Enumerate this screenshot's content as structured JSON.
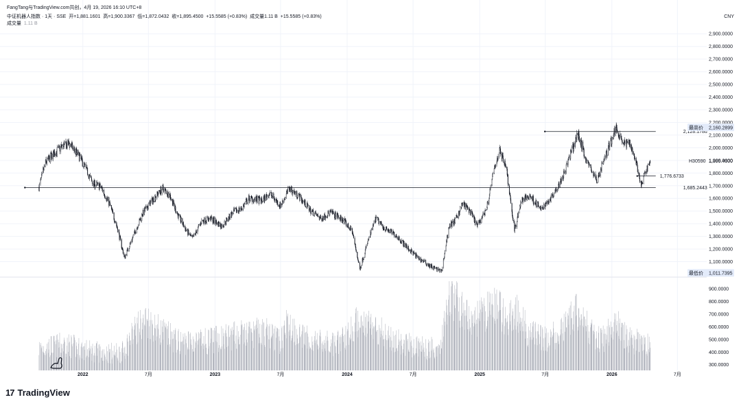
{
  "header": {
    "source": "FangTang与TradingView.com共创，4月 19, 2026 16:10 UTC+8",
    "symbol": "中证机器人指数 · 1天 · SSE",
    "open_label": "开",
    "open": "=1,881.1601",
    "high_label": "高",
    "high": "=1,900.3367",
    "low_label": "低",
    "low": "=1,872.0432",
    "close_label": "收",
    "close": "=1,895.4500",
    "change": "+15.5585 (+0.83%)",
    "volume_label": "成交量",
    "volume": "1.11 B",
    "volume_change": "+15.5585 (+0.83%)",
    "vol_legend_label": "成交量",
    "vol_legend_value": "1.11 B"
  },
  "currency": "CNY",
  "brand": {
    "logo": "17",
    "name": "TradingView"
  },
  "chart_data": {
    "type": "candlestick",
    "price_axis": {
      "range": [
        1000,
        2950
      ],
      "ticks": [
        "2,900.0000",
        "2,800.0000",
        "2,700.0000",
        "2,600.0000",
        "2,500.0000",
        "2,400.0000",
        "2,300.0000",
        "2,200.0000",
        "2,100.0000",
        "2,000.0000",
        "1,900.0000",
        "1,800.0000",
        "1,700.0000",
        "1,600.0000",
        "1,500.0000",
        "1,400.0000",
        "1,300.0000",
        "1,200.0000",
        "1,100.0000"
      ]
    },
    "volume_axis": {
      "range": [
        255,
        960
      ],
      "ticks": [
        "900.0000",
        "800.0000",
        "700.0000",
        "600.0000",
        "500.0000",
        "400.0000",
        "300.0000"
      ]
    },
    "x_axis": {
      "range": [
        "2021-08-01",
        "2026-07-25"
      ],
      "labels": [
        {
          "date": "2022-01-01",
          "text": "2022",
          "bold": true
        },
        {
          "date": "2022-07-01",
          "text": "7月",
          "bold": false
        },
        {
          "date": "2023-01-01",
          "text": "2023",
          "bold": true
        },
        {
          "date": "2023-07-01",
          "text": "7月",
          "bold": false
        },
        {
          "date": "2024-01-01",
          "text": "2024",
          "bold": true
        },
        {
          "date": "2024-07-01",
          "text": "7月",
          "bold": false
        },
        {
          "date": "2025-01-01",
          "text": "2025",
          "bold": true
        },
        {
          "date": "2025-07-01",
          "text": "7月",
          "bold": false
        },
        {
          "date": "2026-01-01",
          "text": "2026",
          "bold": true
        },
        {
          "date": "2026-07-01",
          "text": "7月",
          "bold": false
        }
      ]
    },
    "price_path": [
      [
        "2021-09-02",
        1690
      ],
      [
        "2021-09-20",
        1880
      ],
      [
        "2021-10-15",
        1960
      ],
      [
        "2021-11-05",
        2010
      ],
      [
        "2021-11-25",
        2030
      ],
      [
        "2021-12-20",
        1940
      ],
      [
        "2022-01-10",
        1830
      ],
      [
        "2022-01-28",
        1720
      ],
      [
        "2022-02-20",
        1690
      ],
      [
        "2022-03-15",
        1560
      ],
      [
        "2022-04-05",
        1380
      ],
      [
        "2022-04-26",
        1130
      ],
      [
        "2022-05-20",
        1300
      ],
      [
        "2022-06-15",
        1480
      ],
      [
        "2022-07-05",
        1560
      ],
      [
        "2022-07-25",
        1630
      ],
      [
        "2022-08-10",
        1680
      ],
      [
        "2022-08-30",
        1620
      ],
      [
        "2022-09-20",
        1470
      ],
      [
        "2022-10-15",
        1340
      ],
      [
        "2022-10-31",
        1280
      ],
      [
        "2022-11-25",
        1420
      ],
      [
        "2022-12-20",
        1440
      ],
      [
        "2023-01-20",
        1380
      ],
      [
        "2023-02-20",
        1490
      ],
      [
        "2023-03-15",
        1520
      ],
      [
        "2023-04-05",
        1600
      ],
      [
        "2023-05-10",
        1580
      ],
      [
        "2023-06-01",
        1640
      ],
      [
        "2023-07-01",
        1540
      ],
      [
        "2023-07-25",
        1680
      ],
      [
        "2023-08-20",
        1620
      ],
      [
        "2023-09-20",
        1510
      ],
      [
        "2023-10-20",
        1440
      ],
      [
        "2023-11-15",
        1490
      ],
      [
        "2023-12-20",
        1430
      ],
      [
        "2024-01-15",
        1340
      ],
      [
        "2024-02-05",
        1040
      ],
      [
        "2024-02-26",
        1250
      ],
      [
        "2024-03-20",
        1440
      ],
      [
        "2024-04-15",
        1360
      ],
      [
        "2024-05-15",
        1310
      ],
      [
        "2024-06-15",
        1210
      ],
      [
        "2024-07-15",
        1130
      ],
      [
        "2024-08-15",
        1070
      ],
      [
        "2024-09-18",
        1020
      ],
      [
        "2024-10-08",
        1380
      ],
      [
        "2024-10-25",
        1420
      ],
      [
        "2024-11-15",
        1560
      ],
      [
        "2024-12-05",
        1500
      ],
      [
        "2024-12-25",
        1380
      ],
      [
        "2025-01-20",
        1520
      ],
      [
        "2025-02-10",
        1830
      ],
      [
        "2025-02-25",
        1980
      ],
      [
        "2025-03-15",
        1860
      ],
      [
        "2025-04-07",
        1340
      ],
      [
        "2025-04-25",
        1580
      ],
      [
        "2025-05-20",
        1620
      ],
      [
        "2025-06-20",
        1510
      ],
      [
        "2025-07-20",
        1620
      ],
      [
        "2025-08-20",
        1780
      ],
      [
        "2025-09-10",
        1960
      ],
      [
        "2025-09-30",
        2110
      ],
      [
        "2025-10-20",
        1920
      ],
      [
        "2025-11-20",
        1740
      ],
      [
        "2025-12-05",
        1860
      ],
      [
        "2025-12-20",
        1980
      ],
      [
        "2026-01-13",
        2160
      ],
      [
        "2026-02-03",
        2030
      ],
      [
        "2026-02-20",
        2040
      ],
      [
        "2026-03-10",
        1880
      ],
      [
        "2026-03-23",
        1690
      ],
      [
        "2026-04-05",
        1820
      ],
      [
        "2026-04-17",
        1895
      ]
    ],
    "volume_path": [
      [
        "2021-09-02",
        420
      ],
      [
        "2021-11-15",
        450
      ],
      [
        "2022-01-15",
        400
      ],
      [
        "2022-03-25",
        380
      ],
      [
        "2022-04-20",
        390
      ],
      [
        "2022-05-25",
        560
      ],
      [
        "2022-06-25",
        640
      ],
      [
        "2022-08-01",
        560
      ],
      [
        "2022-09-20",
        470
      ],
      [
        "2022-12-01",
        470
      ],
      [
        "2023-03-01",
        520
      ],
      [
        "2023-05-20",
        550
      ],
      [
        "2023-07-01",
        470
      ],
      [
        "2023-07-20",
        620
      ],
      [
        "2023-09-01",
        500
      ],
      [
        "2023-12-01",
        440
      ],
      [
        "2024-02-10",
        650
      ],
      [
        "2024-03-20",
        580
      ],
      [
        "2024-05-15",
        470
      ],
      [
        "2024-08-01",
        420
      ],
      [
        "2024-09-15",
        430
      ],
      [
        "2024-10-08",
        850
      ],
      [
        "2024-11-01",
        760
      ],
      [
        "2024-12-15",
        620
      ],
      [
        "2025-02-15",
        760
      ],
      [
        "2025-03-20",
        620
      ],
      [
        "2025-04-10",
        720
      ],
      [
        "2025-05-15",
        540
      ],
      [
        "2025-06-25",
        480
      ],
      [
        "2025-08-15",
        540
      ],
      [
        "2025-09-25",
        720
      ],
      [
        "2025-10-25",
        580
      ],
      [
        "2025-12-01",
        470
      ],
      [
        "2026-01-15",
        600
      ],
      [
        "2026-02-20",
        480
      ],
      [
        "2026-04-17",
        460
      ]
    ],
    "lines": [
      {
        "label": "1,685.2443",
        "value": 1685.2443,
        "from": "2021-07-25",
        "to": "2026-04-17"
      },
      {
        "label": "2,128.178u",
        "value": 2128.178,
        "from": "2025-06-30",
        "to": "2026-04-17"
      },
      {
        "label": "1,776.6733",
        "value": 1776.6733,
        "from": "2026-03-12",
        "to": "2026-04-17"
      }
    ],
    "axis_tags": [
      {
        "name": "最高价",
        "value": "2,160.2899",
        "price": 2160.2899
      },
      {
        "name": "H30590",
        "value": "1,895.4500",
        "price": 1895.45
      },
      {
        "name": "最低价",
        "value": "1,011.7395",
        "price": 1011.7395
      }
    ]
  }
}
